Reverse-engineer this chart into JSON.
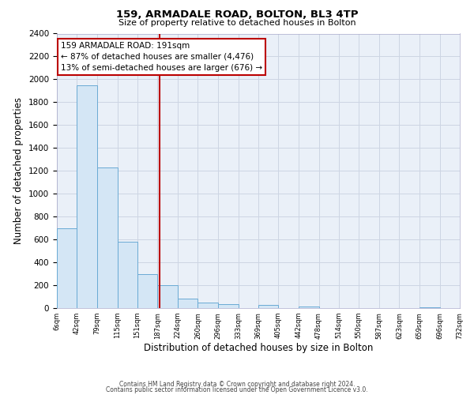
{
  "title": "159, ARMADALE ROAD, BOLTON, BL3 4TP",
  "subtitle": "Size of property relative to detached houses in Bolton",
  "xlabel": "Distribution of detached houses by size in Bolton",
  "ylabel": "Number of detached properties",
  "bin_edges": [
    6,
    42,
    79,
    115,
    151,
    187,
    224,
    260,
    296,
    333,
    369,
    405,
    442,
    478,
    514,
    550,
    587,
    623,
    659,
    696,
    732
  ],
  "bin_counts": [
    700,
    1950,
    1230,
    580,
    300,
    200,
    80,
    45,
    35,
    0,
    25,
    0,
    15,
    0,
    0,
    0,
    0,
    0,
    10,
    0
  ],
  "bar_facecolor": "#d4e6f5",
  "bar_edgecolor": "#6aaad4",
  "vline_x": 191,
  "vline_color": "#bb0000",
  "annotation_title": "159 ARMADALE ROAD: 191sqm",
  "annotation_line1": "← 87% of detached houses are smaller (4,476)",
  "annotation_line2": "13% of semi-detached houses are larger (676) →",
  "annotation_box_edgecolor": "#bb0000",
  "ylim": [
    0,
    2400
  ],
  "yticks": [
    0,
    200,
    400,
    600,
    800,
    1000,
    1200,
    1400,
    1600,
    1800,
    2000,
    2200,
    2400
  ],
  "xtick_labels": [
    "6sqm",
    "42sqm",
    "79sqm",
    "115sqm",
    "151sqm",
    "187sqm",
    "224sqm",
    "260sqm",
    "296sqm",
    "333sqm",
    "369sqm",
    "405sqm",
    "442sqm",
    "478sqm",
    "514sqm",
    "550sqm",
    "587sqm",
    "623sqm",
    "659sqm",
    "696sqm",
    "732sqm"
  ],
  "grid_color": "#cdd5e3",
  "bg_color": "#eaf0f8",
  "footer_line1": "Contains HM Land Registry data © Crown copyright and database right 2024.",
  "footer_line2": "Contains public sector information licensed under the Open Government Licence v3.0."
}
